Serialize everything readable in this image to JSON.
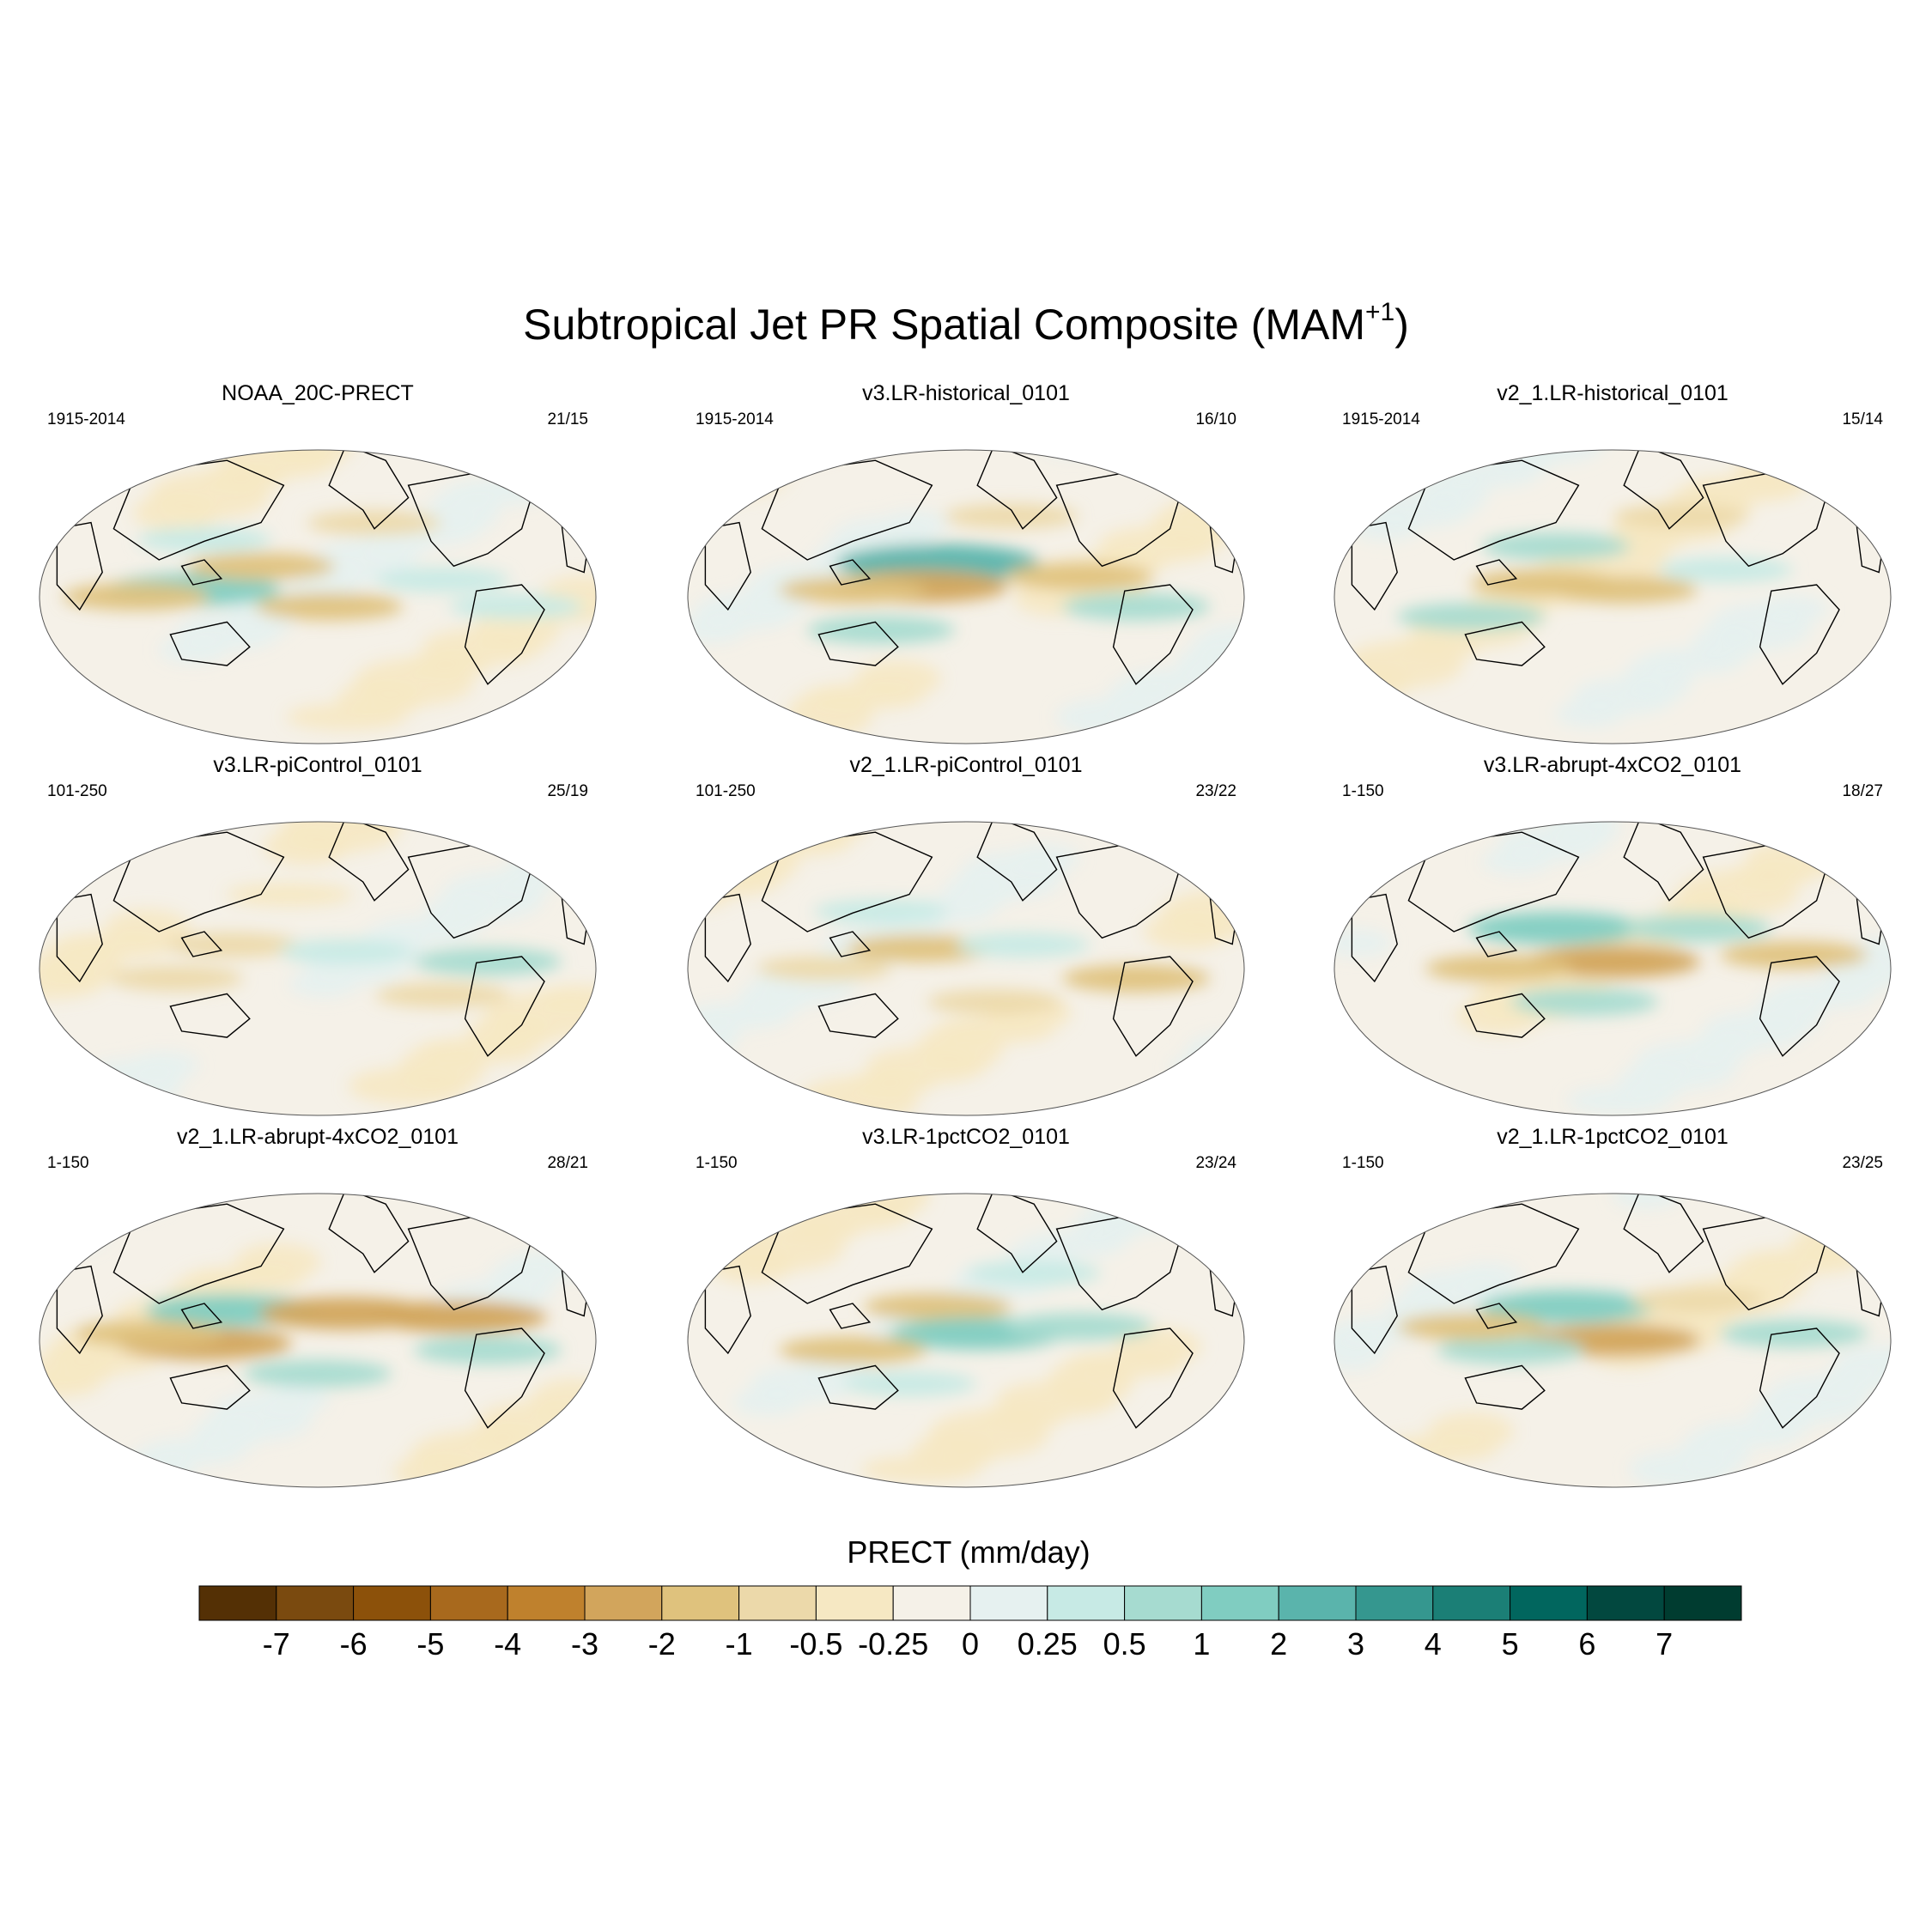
{
  "chart_data": {
    "type": "map-panels",
    "title": "Subtropical Jet PR Spatial Composite (MAM",
    "title_superscript": "+1",
    "title_suffix": ")",
    "projection": "Robinson (global, Pacific-centered)",
    "variable": "PRECT",
    "units": "mm/day",
    "colorbar_label": "PRECT (mm/day)",
    "colorbar_levels": [
      "-7",
      "-6",
      "-5",
      "-4",
      "-3",
      "-2",
      "-1",
      "-0.5",
      "-0.25",
      "0",
      "0.25",
      "0.5",
      "1",
      "2",
      "3",
      "4",
      "5",
      "6",
      "7"
    ],
    "colorbar_colors": [
      "#543005",
      "#7a4a0f",
      "#8c510a",
      "#a8691d",
      "#bf812d",
      "#d2a55c",
      "#dfc27d",
      "#ecd9aa",
      "#f6e8c3",
      "#f5f1e8",
      "#e6f1f0",
      "#c7eae5",
      "#a6dbd0",
      "#80cdc1",
      "#5ab4ac",
      "#35978f",
      "#1b7f76",
      "#01665e",
      "#02483f",
      "#003c30"
    ],
    "panels": [
      {
        "title": "NOAA_20C-PRECT",
        "period": "1915-2014",
        "count": "21/15",
        "pattern": [
          {
            "lon": 0.28,
            "lat": 0.5,
            "val": 2
          },
          {
            "lon": 0.4,
            "lat": 0.43,
            "val": -1
          },
          {
            "lon": 0.52,
            "lat": 0.55,
            "val": -1
          },
          {
            "lon": 0.18,
            "lat": 0.52,
            "val": -1
          },
          {
            "lon": 0.72,
            "lat": 0.47,
            "val": 0.5
          },
          {
            "lon": 0.3,
            "lat": 0.35,
            "val": 0.5
          },
          {
            "lon": 0.6,
            "lat": 0.3,
            "val": -0.5
          },
          {
            "lon": 0.85,
            "lat": 0.55,
            "val": 0.5
          }
        ]
      },
      {
        "title": "v3.LR-historical_0101",
        "period": "1915-2014",
        "count": "16/10",
        "pattern": [
          {
            "lon": 0.45,
            "lat": 0.42,
            "val": 3
          },
          {
            "lon": 0.42,
            "lat": 0.49,
            "val": -2
          },
          {
            "lon": 0.3,
            "lat": 0.5,
            "val": -1
          },
          {
            "lon": 0.7,
            "lat": 0.46,
            "val": -1
          },
          {
            "lon": 0.35,
            "lat": 0.62,
            "val": 1
          },
          {
            "lon": 0.58,
            "lat": 0.28,
            "val": -0.5
          },
          {
            "lon": 0.8,
            "lat": 0.55,
            "val": 1
          }
        ]
      },
      {
        "title": "v2_1.LR-historical_0101",
        "period": "1915-2014",
        "count": "15/14",
        "pattern": [
          {
            "lon": 0.38,
            "lat": 0.48,
            "val": -1
          },
          {
            "lon": 0.52,
            "lat": 0.5,
            "val": -1
          },
          {
            "lon": 0.4,
            "lat": 0.37,
            "val": 1
          },
          {
            "lon": 0.25,
            "lat": 0.58,
            "val": 1
          },
          {
            "lon": 0.7,
            "lat": 0.44,
            "val": 0.5
          },
          {
            "lon": 0.62,
            "lat": 0.28,
            "val": -0.5
          }
        ]
      },
      {
        "title": "v3.LR-piControl_0101",
        "period": "101-250",
        "count": "25/19",
        "pattern": [
          {
            "lon": 0.35,
            "lat": 0.45,
            "val": -0.5
          },
          {
            "lon": 0.55,
            "lat": 0.47,
            "val": 0.5
          },
          {
            "lon": 0.8,
            "lat": 0.5,
            "val": 1
          },
          {
            "lon": 0.25,
            "lat": 0.55,
            "val": -0.5
          },
          {
            "lon": 0.45,
            "lat": 0.3,
            "val": -0.25
          },
          {
            "lon": 0.72,
            "lat": 0.6,
            "val": -0.5
          }
        ]
      },
      {
        "title": "v2_1.LR-piControl_0101",
        "period": "101-250",
        "count": "23/22",
        "pattern": [
          {
            "lon": 0.42,
            "lat": 0.46,
            "val": -1
          },
          {
            "lon": 0.6,
            "lat": 0.45,
            "val": 0.5
          },
          {
            "lon": 0.35,
            "lat": 0.35,
            "val": 0.5
          },
          {
            "lon": 0.8,
            "lat": 0.55,
            "val": -1
          },
          {
            "lon": 0.25,
            "lat": 0.52,
            "val": -0.5
          },
          {
            "lon": 0.55,
            "lat": 0.62,
            "val": -0.5
          }
        ]
      },
      {
        "title": "v3.LR-abrupt-4xCO2_0101",
        "period": "1-150",
        "count": "18/27",
        "pattern": [
          {
            "lon": 0.4,
            "lat": 0.4,
            "val": 2
          },
          {
            "lon": 0.5,
            "lat": 0.5,
            "val": -2
          },
          {
            "lon": 0.3,
            "lat": 0.52,
            "val": -1
          },
          {
            "lon": 0.82,
            "lat": 0.48,
            "val": -1
          },
          {
            "lon": 0.45,
            "lat": 0.62,
            "val": 1
          },
          {
            "lon": 0.65,
            "lat": 0.4,
            "val": 1
          }
        ]
      },
      {
        "title": "v2_1.LR-abrupt-4xCO2_0101",
        "period": "1-150",
        "count": "28/21",
        "pattern": [
          {
            "lon": 0.35,
            "lat": 0.43,
            "val": 2
          },
          {
            "lon": 0.55,
            "lat": 0.44,
            "val": -2
          },
          {
            "lon": 0.75,
            "lat": 0.45,
            "val": -2
          },
          {
            "lon": 0.3,
            "lat": 0.53,
            "val": -2
          },
          {
            "lon": 0.5,
            "lat": 0.62,
            "val": 1
          },
          {
            "lon": 0.8,
            "lat": 0.55,
            "val": 1
          },
          {
            "lon": 0.2,
            "lat": 0.5,
            "val": -1
          }
        ]
      },
      {
        "title": "v3.LR-1pctCO2_0101",
        "period": "1-150",
        "count": "23/24",
        "pattern": [
          {
            "lon": 0.45,
            "lat": 0.42,
            "val": -1
          },
          {
            "lon": 0.52,
            "lat": 0.5,
            "val": 2
          },
          {
            "lon": 0.3,
            "lat": 0.55,
            "val": -1
          },
          {
            "lon": 0.7,
            "lat": 0.48,
            "val": 1
          },
          {
            "lon": 0.4,
            "lat": 0.65,
            "val": 0.5
          },
          {
            "lon": 0.62,
            "lat": 0.32,
            "val": 0.5
          }
        ]
      },
      {
        "title": "v2_1.LR-1pctCO2_0101",
        "period": "1-150",
        "count": "23/25",
        "pattern": [
          {
            "lon": 0.42,
            "lat": 0.42,
            "val": 2
          },
          {
            "lon": 0.5,
            "lat": 0.52,
            "val": -2
          },
          {
            "lon": 0.32,
            "lat": 0.55,
            "val": 1
          },
          {
            "lon": 0.82,
            "lat": 0.5,
            "val": 1
          },
          {
            "lon": 0.65,
            "lat": 0.4,
            "val": -0.5
          },
          {
            "lon": 0.25,
            "lat": 0.48,
            "val": -1
          }
        ]
      }
    ]
  }
}
